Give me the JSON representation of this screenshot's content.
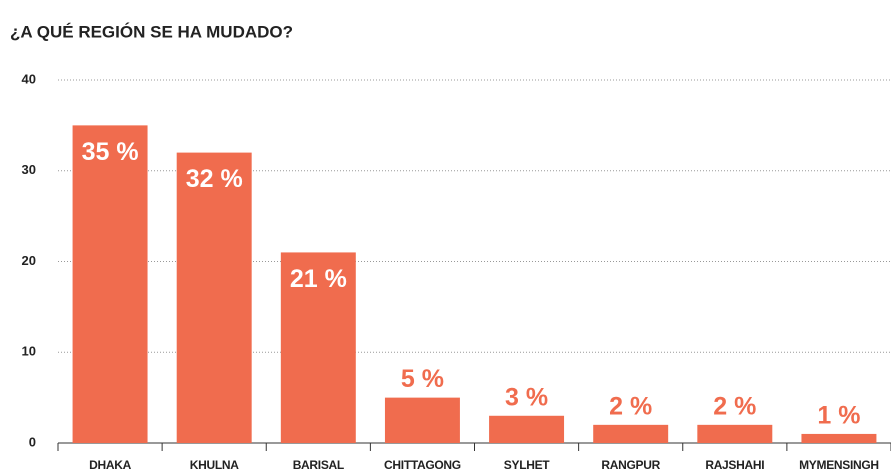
{
  "chart_data": {
    "type": "bar",
    "title": "¿A QUÉ REGIÓN SE HA MUDADO?",
    "categories": [
      "DHAKA",
      "KHULNA",
      "BARISAL",
      "CHITTAGONG",
      "SYLHET",
      "RANGPUR",
      "RAJSHAHI",
      "MYMENSINGH"
    ],
    "values": [
      35,
      32,
      21,
      5,
      3,
      2,
      2,
      1
    ],
    "value_labels": [
      "35 %",
      "32 %",
      "21 %",
      "5 %",
      "3 %",
      "2 %",
      "2 %",
      "1 %"
    ],
    "color": "#f06c4e",
    "ylim": [
      0,
      40
    ],
    "yticks": [
      0,
      10,
      20,
      30,
      40
    ],
    "grid": true
  }
}
